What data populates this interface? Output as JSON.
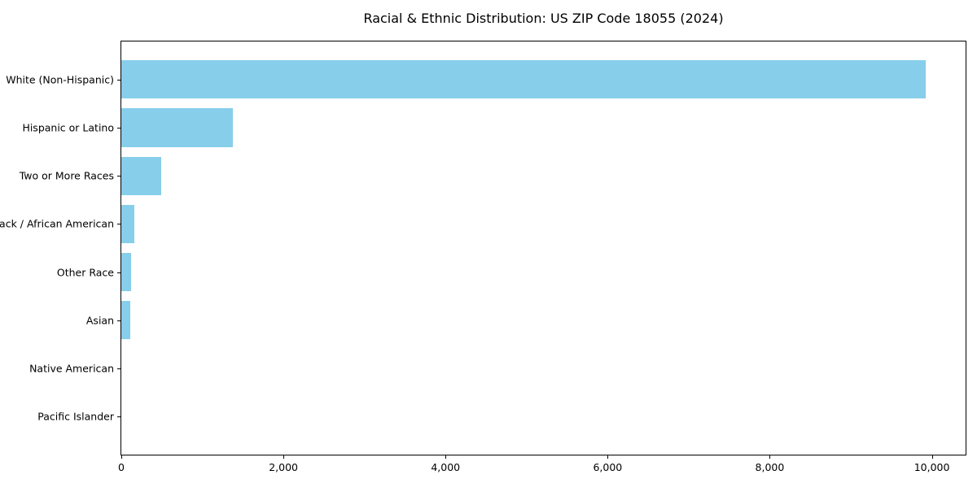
{
  "chart_data": {
    "type": "bar",
    "orientation": "horizontal",
    "title": "Racial & Ethnic Distribution: US ZIP Code 18055 (2024)",
    "xlabel": "",
    "ylabel": "",
    "categories": [
      "White (Non-Hispanic)",
      "Hispanic or Latino",
      "Two or More Races",
      "Black / African American",
      "Other Race",
      "Asian",
      "Native American",
      "Pacific Islander"
    ],
    "values": [
      9920,
      1374,
      490,
      165,
      120,
      110,
      0,
      0
    ],
    "xlim": [
      0,
      10416
    ],
    "xticks": [
      {
        "value": 0,
        "label": "0"
      },
      {
        "value": 2000,
        "label": "2,000"
      },
      {
        "value": 4000,
        "label": "4,000"
      },
      {
        "value": 6000,
        "label": "6,000"
      },
      {
        "value": 8000,
        "label": "8,000"
      },
      {
        "value": 10000,
        "label": "10,000"
      }
    ],
    "bar_color": "#87CEEB",
    "grid": false,
    "legend": null
  }
}
